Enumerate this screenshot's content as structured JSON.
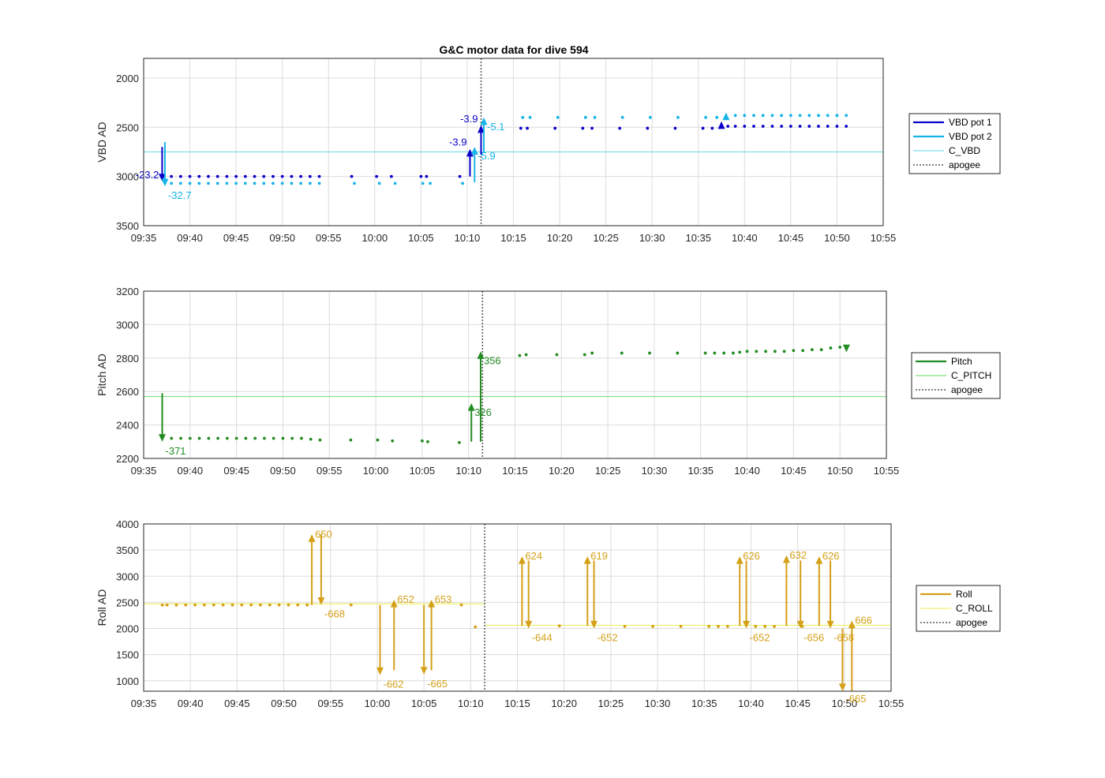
{
  "title": "G&C motor data for dive 594",
  "colors": {
    "vbd1": "#0a00c8",
    "vbd2": "#16b4e8",
    "c_vbd": "#7fdde8",
    "pitch": "#228b22",
    "c_pitch": "#7fe07f",
    "roll": "#d4a017",
    "c_roll": "#f0f070",
    "apogee": "#555555",
    "grid": "#dcdcdc"
  },
  "chart_data": [
    {
      "type": "scatter",
      "ylabel": "VBD AD",
      "y_reversed": true,
      "ylim": [
        1800,
        3500
      ],
      "yticks": [
        2000,
        2500,
        3000,
        3500
      ],
      "xlim": [
        "09:35",
        "10:55"
      ],
      "xticks": [
        "09:35",
        "09:40",
        "09:45",
        "09:50",
        "09:55",
        "10:00",
        "10:05",
        "10:10",
        "10:15",
        "10:20",
        "10:25",
        "10:30",
        "10:35",
        "10:40",
        "10:45",
        "10:50",
        "10:55"
      ],
      "grid": true,
      "legend_position": "outside-right",
      "apogee": "10:11.5",
      "reference_lines": [
        {
          "name": "C_VBD",
          "y": 2750,
          "color_key": "c_vbd"
        }
      ],
      "series": [
        {
          "name": "VBD pot 1",
          "color_key": "vbd1",
          "x": [
            "09:38",
            "09:39",
            "09:40",
            "09:41",
            "09:42",
            "09:43",
            "09:44",
            "09:45",
            "09:46",
            "09:47",
            "09:48",
            "09:49",
            "09:50",
            "09:51",
            "09:52",
            "09:53",
            "09:54",
            "09:57.5",
            "10:00.2",
            "10:01.8",
            "10:05",
            "10:05.6",
            "10:09.2",
            "10:15.8",
            "10:16.5",
            "10:19.5",
            "10:22.5",
            "10:23.5",
            "10:26.5",
            "10:29.5",
            "10:32.5",
            "10:35.5",
            "10:36.5",
            "10:38.2",
            "10:39",
            "10:40",
            "10:41",
            "10:42",
            "10:43",
            "10:44",
            "10:45",
            "10:46",
            "10:47",
            "10:48",
            "10:49",
            "10:50",
            "10:51"
          ],
          "y": [
            3000,
            3000,
            3000,
            3000,
            3000,
            3000,
            3000,
            3000,
            3000,
            3000,
            3000,
            3000,
            3000,
            3000,
            3000,
            3000,
            3000,
            3000,
            3000,
            3000,
            3000,
            3000,
            3000,
            2510,
            2510,
            2510,
            2510,
            2510,
            2510,
            2510,
            2510,
            2510,
            2510,
            2490,
            2490,
            2490,
            2490,
            2490,
            2490,
            2490,
            2490,
            2490,
            2490,
            2490,
            2490,
            2490,
            2490
          ]
        },
        {
          "name": "VBD pot 2",
          "color_key": "vbd2",
          "x": [
            "09:38",
            "09:39",
            "09:40",
            "09:41",
            "09:42",
            "09:43",
            "09:44",
            "09:45",
            "09:46",
            "09:47",
            "09:48",
            "09:49",
            "09:50",
            "09:51",
            "09:52",
            "09:53",
            "09:54",
            "09:57.8",
            "10:00.5",
            "10:02.2",
            "10:05.2",
            "10:06",
            "10:09.5",
            "10:16",
            "10:16.8",
            "10:19.8",
            "10:22.8",
            "10:23.8",
            "10:26.8",
            "10:29.8",
            "10:32.8",
            "10:35.8",
            "10:37",
            "10:39",
            "10:40",
            "10:41",
            "10:42",
            "10:43",
            "10:44",
            "10:45",
            "10:46",
            "10:47",
            "10:48",
            "10:49",
            "10:50",
            "10:51"
          ],
          "y": [
            3070,
            3070,
            3070,
            3070,
            3070,
            3070,
            3070,
            3070,
            3070,
            3070,
            3070,
            3070,
            3070,
            3070,
            3070,
            3070,
            3070,
            3070,
            3070,
            3070,
            3070,
            3070,
            3070,
            2400,
            2400,
            2400,
            2400,
            2400,
            2400,
            2400,
            2400,
            2400,
            2400,
            2380,
            2380,
            2380,
            2380,
            2380,
            2380,
            2380,
            2380,
            2380,
            2380,
            2380,
            2380,
            2380
          ]
        }
      ],
      "arrows": [
        {
          "series": "VBD pot 1",
          "x": "09:37",
          "y_from": 2700,
          "y_to": 3050,
          "label": "-23.2",
          "label_side": "left"
        },
        {
          "series": "VBD pot 2",
          "x": "09:37.3",
          "y_from": 2650,
          "y_to": 3100,
          "label": "-32.7",
          "label_side": "right-below"
        },
        {
          "series": "VBD pot 1",
          "x": "10:10.3",
          "y_from": 3000,
          "y_to": 2720,
          "label": "-3.9",
          "label_side": "left"
        },
        {
          "series": "VBD pot 2",
          "x": "10:10.8",
          "y_from": 3060,
          "y_to": 2700,
          "label": "-5.9",
          "label_side": "right-below"
        },
        {
          "series": "VBD pot 1",
          "x": "10:11.5",
          "y_from": 2780,
          "y_to": 2480,
          "label": "-3.9",
          "label_side": "left"
        },
        {
          "series": "VBD pot 2",
          "x": "10:11.8",
          "y_from": 2750,
          "y_to": 2400,
          "label": "-5.1",
          "label_side": "right"
        },
        {
          "series": "VBD pot 1",
          "x": "10:37.5",
          "y_from": 2500,
          "y_to": 2440,
          "label": "",
          "label_side": "none"
        },
        {
          "series": "VBD pot 2",
          "x": "10:38",
          "y_from": 2400,
          "y_to": 2350,
          "label": "",
          "label_side": "none"
        }
      ],
      "legend": [
        "VBD pot 1",
        "VBD pot 2",
        "C_VBD",
        "apogee"
      ]
    },
    {
      "type": "scatter",
      "ylabel": "Pitch AD",
      "y_reversed": false,
      "ylim": [
        2200,
        3200
      ],
      "yticks": [
        2200,
        2400,
        2600,
        2800,
        3000,
        3200
      ],
      "xlim": [
        "09:35",
        "10:55"
      ],
      "xticks": [
        "09:35",
        "09:40",
        "09:45",
        "09:50",
        "09:55",
        "10:00",
        "10:05",
        "10:10",
        "10:15",
        "10:20",
        "10:25",
        "10:30",
        "10:35",
        "10:40",
        "10:45",
        "10:50",
        "10:55"
      ],
      "grid": true,
      "legend_position": "outside-right",
      "apogee": "10:11.5",
      "reference_lines": [
        {
          "name": "C_PITCH",
          "y": 2570,
          "color_key": "c_pitch"
        }
      ],
      "series": [
        {
          "name": "Pitch",
          "color_key": "pitch",
          "x": [
            "09:38",
            "09:39",
            "09:40",
            "09:41",
            "09:42",
            "09:43",
            "09:44",
            "09:45",
            "09:46",
            "09:47",
            "09:48",
            "09:49",
            "09:50",
            "09:51",
            "09:52",
            "09:53",
            "09:54",
            "09:57.3",
            "10:00.2",
            "10:01.8",
            "10:05",
            "10:05.6",
            "10:09",
            "10:15.5",
            "10:16.2",
            "10:19.5",
            "10:22.5",
            "10:23.3",
            "10:26.5",
            "10:29.5",
            "10:32.5",
            "10:35.5",
            "10:36.5",
            "10:37.5",
            "10:38.5",
            "10:39.2",
            "10:40",
            "10:41",
            "10:42",
            "10:43",
            "10:44",
            "10:45",
            "10:46",
            "10:47",
            "10:48",
            "10:49",
            "10:50"
          ],
          "y": [
            2320,
            2320,
            2320,
            2320,
            2320,
            2320,
            2320,
            2320,
            2320,
            2320,
            2320,
            2320,
            2320,
            2320,
            2320,
            2315,
            2310,
            2310,
            2310,
            2305,
            2305,
            2300,
            2295,
            2815,
            2820,
            2820,
            2820,
            2830,
            2830,
            2830,
            2830,
            2830,
            2830,
            2830,
            2830,
            2835,
            2840,
            2840,
            2840,
            2840,
            2840,
            2845,
            2845,
            2850,
            2850,
            2860,
            2865
          ]
        }
      ],
      "arrows": [
        {
          "series": "Pitch",
          "x": "09:37",
          "y_from": 2590,
          "y_to": 2300,
          "label": "-371",
          "label_side": "right-below"
        },
        {
          "series": "Pitch",
          "x": "10:10.3",
          "y_from": 2300,
          "y_to": 2530,
          "label": "326",
          "label_side": "right"
        },
        {
          "series": "Pitch",
          "x": "10:11.3",
          "y_from": 2300,
          "y_to": 2840,
          "label": "356",
          "label_side": "right"
        },
        {
          "series": "Pitch",
          "x": "10:50.7",
          "y_from": 2870,
          "y_to": 2835,
          "label": "",
          "label_side": "none"
        }
      ],
      "legend": [
        "Pitch",
        "C_PITCH",
        "apogee"
      ]
    },
    {
      "type": "scatter",
      "ylabel": "Roll AD",
      "y_reversed": false,
      "ylim": [
        800,
        4000
      ],
      "yticks": [
        1000,
        1500,
        2000,
        2500,
        3000,
        3500,
        4000
      ],
      "xlim": [
        "09:35",
        "10:55"
      ],
      "xticks": [
        "09:35",
        "09:40",
        "09:45",
        "09:50",
        "09:55",
        "10:00",
        "10:05",
        "10:10",
        "10:15",
        "10:20",
        "10:25",
        "10:30",
        "10:35",
        "10:40",
        "10:45",
        "10:50",
        "10:55"
      ],
      "grid": true,
      "legend_position": "outside-right",
      "apogee": "10:11.5",
      "reference_lines": [
        {
          "name": "C_ROLL",
          "y": 2470,
          "x_from": "09:35",
          "x_to": "10:11.5",
          "color_key": "c_roll"
        },
        {
          "name": "C_ROLL",
          "y": 2060,
          "x_from": "10:11.5",
          "x_to": "10:55",
          "color_key": "c_roll"
        }
      ],
      "series": [
        {
          "name": "Roll",
          "color_key": "roll",
          "x": [
            "09:37",
            "09:37.5",
            "09:38.5",
            "09:39.5",
            "09:40.5",
            "09:41.5",
            "09:42.5",
            "09:43.5",
            "09:44.5",
            "09:45.5",
            "09:46.5",
            "09:47.5",
            "09:48.5",
            "09:49.5",
            "09:50.5",
            "09:51.5",
            "09:52.5",
            "09:57.2",
            "10:09",
            "10:10.5",
            "10:19.5",
            "10:26.5",
            "10:29.5",
            "10:32.5",
            "10:35.5",
            "10:36.5",
            "10:37.5",
            "10:40.5",
            "10:41.5",
            "10:42.5",
            "10:45.5"
          ],
          "y": [
            2450,
            2450,
            2450,
            2450,
            2450,
            2450,
            2450,
            2450,
            2450,
            2450,
            2450,
            2450,
            2450,
            2450,
            2450,
            2450,
            2450,
            2450,
            2450,
            2030,
            2050,
            2040,
            2040,
            2040,
            2040,
            2040,
            2040,
            2040,
            2040,
            2040,
            2040
          ]
        }
      ],
      "arrows": [
        {
          "series": "Roll",
          "x": "09:53",
          "y_from": 2450,
          "y_to": 3800,
          "label": "650",
          "label_side": "right-top"
        },
        {
          "series": "Roll",
          "x": "09:54",
          "y_from": 3800,
          "y_to": 2450,
          "label": "-668",
          "label_side": "right-below"
        },
        {
          "series": "Roll",
          "x": "10:00.3",
          "y_from": 2450,
          "y_to": 1110,
          "label": "-662",
          "label_side": "right-below"
        },
        {
          "series": "Roll",
          "x": "10:01.8",
          "y_from": 1200,
          "y_to": 2550,
          "label": "652",
          "label_side": "right-top"
        },
        {
          "series": "Roll",
          "x": "10:05",
          "y_from": 2450,
          "y_to": 1120,
          "label": "-665",
          "label_side": "right-below"
        },
        {
          "series": "Roll",
          "x": "10:05.8",
          "y_from": 1200,
          "y_to": 2550,
          "label": "653",
          "label_side": "right-top"
        },
        {
          "series": "Roll",
          "x": "10:15.5",
          "y_from": 2050,
          "y_to": 3380,
          "label": "624",
          "label_side": "right-top"
        },
        {
          "series": "Roll",
          "x": "10:16.2",
          "y_from": 3300,
          "y_to": 2000,
          "label": "-644",
          "label_side": "right-below"
        },
        {
          "series": "Roll",
          "x": "10:22.5",
          "y_from": 2050,
          "y_to": 3380,
          "label": "619",
          "label_side": "right-top"
        },
        {
          "series": "Roll",
          "x": "10:23.2",
          "y_from": 3300,
          "y_to": 2000,
          "label": "-652",
          "label_side": "right-below"
        },
        {
          "series": "Roll",
          "x": "10:38.8",
          "y_from": 2050,
          "y_to": 3380,
          "label": "626",
          "label_side": "right-top"
        },
        {
          "series": "Roll",
          "x": "10:39.5",
          "y_from": 3300,
          "y_to": 2000,
          "label": "-652",
          "label_side": "right-below"
        },
        {
          "series": "Roll",
          "x": "10:43.8",
          "y_from": 2050,
          "y_to": 3400,
          "label": "632",
          "label_side": "right-top"
        },
        {
          "series": "Roll",
          "x": "10:45.3",
          "y_from": 3300,
          "y_to": 2000,
          "label": "-656",
          "label_side": "right-below"
        },
        {
          "series": "Roll",
          "x": "10:47.3",
          "y_from": 2050,
          "y_to": 3380,
          "label": "626",
          "label_side": "right-top"
        },
        {
          "series": "Roll",
          "x": "10:48.5",
          "y_from": 3300,
          "y_to": 2000,
          "label": "-658",
          "label_side": "right-below"
        },
        {
          "series": "Roll",
          "x": "10:49.8",
          "y_from": 2000,
          "y_to": 800,
          "label": "-665",
          "label_side": "right-below"
        },
        {
          "series": "Roll",
          "x": "10:50.8",
          "y_from": 800,
          "y_to": 2150,
          "label": "666",
          "label_side": "right-top"
        }
      ],
      "legend": [
        "Roll",
        "C_ROLL",
        "apogee"
      ]
    }
  ]
}
